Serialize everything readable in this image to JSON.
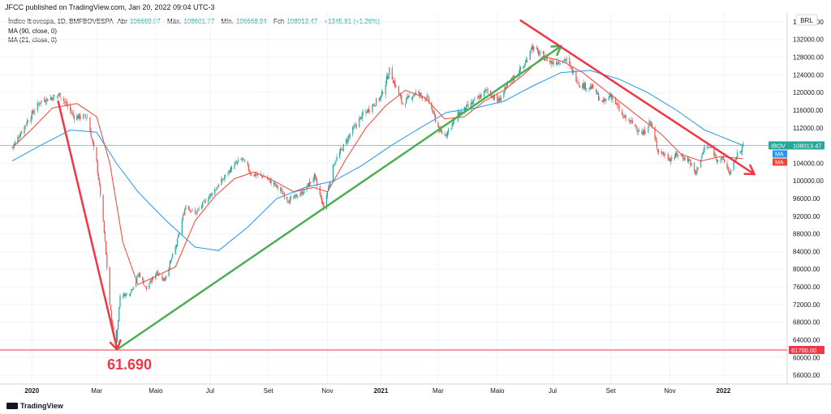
{
  "header": {
    "published": "JFCC published on TradingView.com, Jan 20, 2022 09:04 UTC-3"
  },
  "legend": {
    "symbol": "Índice Ibovespa, 1D, BMFBOVESPA",
    "open_label": "Abr",
    "open": "106669.97",
    "high_label": "Máx.",
    "high": "108601.77",
    "low_label": "Mín.",
    "low": "106668.94",
    "close_label": "Fch",
    "close": "108013.47",
    "change": "+1345.81 (+1.26%)",
    "ma1": "MA (90, close, 0)",
    "ma2": "MA (21, close, 0)"
  },
  "axis": {
    "currency": "BRL"
  },
  "badges": {
    "ibov_label": "IBOV",
    "ibov_value": "108013.47",
    "ma_label_1": "MA",
    "ma_label_2": "MA",
    "line_value": "61700.00"
  },
  "annotation": {
    "low_text": "61.690"
  },
  "footer": {
    "brand": "TradingView"
  },
  "colors": {
    "up": "#26a69a",
    "down": "#ef5350",
    "ma90": "#2196f3",
    "ma21": "#f44336",
    "trend_green": "#4caf50",
    "trend_red": "#f23645",
    "badge_ibov": "#26a69a"
  },
  "chart_data": {
    "type": "line",
    "ylim": [
      54000,
      138000
    ],
    "yticks": [
      56000,
      60000,
      64000,
      68000,
      72000,
      76000,
      80000,
      84000,
      88000,
      92000,
      96000,
      100000,
      104000,
      108000,
      112000,
      116000,
      120000,
      124000,
      128000,
      132000,
      136000
    ],
    "ytick_labels": [
      "56000.00",
      "60000.00",
      "64000.00",
      "68000.00",
      "72000.00",
      "76000.00",
      "80000.00",
      "84000.00",
      "88000.00",
      "92000.00",
      "96000.00",
      "100000.00",
      "104000.00",
      "108000.00",
      "112000.00",
      "116000.00",
      "120000.00",
      "124000.00",
      "128000.00",
      "132000.00",
      "136000.00"
    ],
    "xticks": [
      {
        "t": "2019-12-24",
        "label": "2020",
        "bold": true
      },
      {
        "t": "2020-03-02",
        "label": "Mar",
        "bold": false
      },
      {
        "t": "2020-05-04",
        "label": "Maio",
        "bold": false
      },
      {
        "t": "2020-07-01",
        "label": "Jul",
        "bold": false
      },
      {
        "t": "2020-09-01",
        "label": "Set",
        "bold": false
      },
      {
        "t": "2020-11-03",
        "label": "Nov",
        "bold": false
      },
      {
        "t": "2020-12-30",
        "label": "2021",
        "bold": true
      },
      {
        "t": "2021-03-01",
        "label": "Mar",
        "bold": false
      },
      {
        "t": "2021-05-03",
        "label": "Maio",
        "bold": false
      },
      {
        "t": "2021-07-01",
        "label": "Jul",
        "bold": false
      },
      {
        "t": "2021-09-01",
        "label": "Set",
        "bold": false
      },
      {
        "t": "2021-11-03",
        "label": "Nov",
        "bold": false
      },
      {
        "t": "2021-12-30",
        "label": "2022",
        "bold": true
      }
    ],
    "series": [
      {
        "name": "Índice Ibovespa",
        "points": [
          [
            "2019-12-03",
            107500
          ],
          [
            "2019-12-19",
            113500
          ],
          [
            "2020-01-02",
            118000
          ],
          [
            "2020-01-23",
            119500
          ],
          [
            "2020-02-07",
            114500
          ],
          [
            "2020-02-21",
            114500
          ],
          [
            "2020-03-02",
            104000
          ],
          [
            "2020-03-06",
            97000
          ],
          [
            "2020-03-11",
            86000
          ],
          [
            "2020-03-16",
            72000
          ],
          [
            "2020-03-19",
            67000
          ],
          [
            "2020-03-23",
            63600
          ],
          [
            "2020-03-27",
            74000
          ],
          [
            "2020-04-06",
            74500
          ],
          [
            "2020-04-16",
            79000
          ],
          [
            "2020-04-24",
            75500
          ],
          [
            "2020-05-05",
            79500
          ],
          [
            "2020-05-13",
            77500
          ],
          [
            "2020-05-26",
            85500
          ],
          [
            "2020-06-05",
            94600
          ],
          [
            "2020-06-15",
            92500
          ],
          [
            "2020-06-26",
            95500
          ],
          [
            "2020-07-08",
            98500
          ],
          [
            "2020-07-24",
            103000
          ],
          [
            "2020-08-04",
            105000
          ],
          [
            "2020-08-14",
            101500
          ],
          [
            "2020-08-28",
            101000
          ],
          [
            "2020-09-11",
            98500
          ],
          [
            "2020-09-23",
            95500
          ],
          [
            "2020-10-08",
            97500
          ],
          [
            "2020-10-20",
            101000
          ],
          [
            "2020-10-30",
            93900
          ],
          [
            "2020-11-10",
            104000
          ],
          [
            "2020-11-27",
            110500
          ],
          [
            "2020-12-09",
            114500
          ],
          [
            "2020-12-30",
            119000
          ],
          [
            "2021-01-08",
            125000
          ],
          [
            "2021-01-22",
            117500
          ],
          [
            "2021-02-05",
            120000
          ],
          [
            "2021-02-18",
            118500
          ],
          [
            "2021-03-03",
            111000
          ],
          [
            "2021-03-09",
            110500
          ],
          [
            "2021-03-22",
            115000
          ],
          [
            "2021-04-06",
            117500
          ],
          [
            "2021-04-22",
            120500
          ],
          [
            "2021-05-04",
            118000
          ],
          [
            "2021-05-17",
            122500
          ],
          [
            "2021-06-02",
            126500
          ],
          [
            "2021-06-08",
            130500
          ],
          [
            "2021-06-18",
            128500
          ],
          [
            "2021-06-30",
            126800
          ],
          [
            "2021-07-15",
            127500
          ],
          [
            "2021-07-30",
            121800
          ],
          [
            "2021-08-13",
            121000
          ],
          [
            "2021-08-23",
            117500
          ],
          [
            "2021-09-01",
            119500
          ],
          [
            "2021-09-14",
            114500
          ],
          [
            "2021-09-24",
            113000
          ],
          [
            "2021-10-05",
            110500
          ],
          [
            "2021-10-13",
            113500
          ],
          [
            "2021-10-21",
            107000
          ],
          [
            "2021-11-03",
            105000
          ],
          [
            "2021-11-12",
            106000
          ],
          [
            "2021-11-24",
            104500
          ],
          [
            "2021-11-30",
            101500
          ],
          [
            "2021-12-10",
            107500
          ],
          [
            "2021-12-17",
            107500
          ],
          [
            "2021-12-23",
            105000
          ],
          [
            "2021-12-30",
            104800
          ],
          [
            "2022-01-06",
            101600
          ],
          [
            "2022-01-13",
            105500
          ],
          [
            "2022-01-20",
            108013
          ]
        ]
      },
      {
        "name": "MA (90, close, 0)",
        "points": [
          [
            "2019-12-03",
            104500
          ],
          [
            "2020-01-02",
            108000
          ],
          [
            "2020-02-03",
            111500
          ],
          [
            "2020-03-02",
            111000
          ],
          [
            "2020-03-23",
            104000
          ],
          [
            "2020-04-15",
            97500
          ],
          [
            "2020-05-15",
            91000
          ],
          [
            "2020-06-15",
            85000
          ],
          [
            "2020-07-10",
            84200
          ],
          [
            "2020-08-10",
            89500
          ],
          [
            "2020-09-10",
            96000
          ],
          [
            "2020-10-10",
            98500
          ],
          [
            "2020-11-10",
            100000
          ],
          [
            "2020-12-10",
            103500
          ],
          [
            "2021-01-10",
            108000
          ],
          [
            "2021-02-10",
            112000
          ],
          [
            "2021-03-10",
            115500
          ],
          [
            "2021-04-10",
            116500
          ],
          [
            "2021-05-10",
            118000
          ],
          [
            "2021-06-10",
            121500
          ],
          [
            "2021-07-10",
            124500
          ],
          [
            "2021-08-10",
            125000
          ],
          [
            "2021-09-10",
            123000
          ],
          [
            "2021-10-10",
            120000
          ],
          [
            "2021-11-10",
            116000
          ],
          [
            "2021-12-10",
            111500
          ],
          [
            "2022-01-20",
            108000
          ]
        ]
      },
      {
        "name": "MA (21, close, 0)",
        "points": [
          [
            "2019-12-03",
            107500
          ],
          [
            "2019-12-23",
            111500
          ],
          [
            "2020-01-15",
            116500
          ],
          [
            "2020-02-10",
            117500
          ],
          [
            "2020-03-02",
            114500
          ],
          [
            "2020-03-16",
            104000
          ],
          [
            "2020-03-30",
            86000
          ],
          [
            "2020-04-15",
            76500
          ],
          [
            "2020-05-05",
            78500
          ],
          [
            "2020-05-25",
            80500
          ],
          [
            "2020-06-15",
            91000
          ],
          [
            "2020-07-06",
            96500
          ],
          [
            "2020-07-27",
            100500
          ],
          [
            "2020-08-17",
            102000
          ],
          [
            "2020-09-07",
            100000
          ],
          [
            "2020-09-28",
            97500
          ],
          [
            "2020-10-19",
            98500
          ],
          [
            "2020-11-03",
            97500
          ],
          [
            "2020-11-23",
            105000
          ],
          [
            "2020-12-14",
            112000
          ],
          [
            "2021-01-04",
            117000
          ],
          [
            "2021-01-25",
            120500
          ],
          [
            "2021-02-15",
            118800
          ],
          [
            "2021-03-08",
            114000
          ],
          [
            "2021-03-29",
            114500
          ],
          [
            "2021-04-19",
            118000
          ],
          [
            "2021-05-10",
            120500
          ],
          [
            "2021-05-31",
            124000
          ],
          [
            "2021-06-21",
            128200
          ],
          [
            "2021-07-12",
            127000
          ],
          [
            "2021-08-02",
            124500
          ],
          [
            "2021-08-23",
            121000
          ],
          [
            "2021-09-13",
            117500
          ],
          [
            "2021-10-04",
            114000
          ],
          [
            "2021-10-25",
            110500
          ],
          [
            "2021-11-15",
            106000
          ],
          [
            "2021-12-06",
            104500
          ],
          [
            "2021-12-27",
            105500
          ],
          [
            "2022-01-20",
            105000
          ]
        ]
      }
    ],
    "annotations": [
      {
        "type": "trendline",
        "color": "red",
        "from": [
          "2020-01-21",
          118000
        ],
        "to": [
          "2020-03-24",
          61800
        ]
      },
      {
        "type": "trendline",
        "color": "green",
        "from": [
          "2020-03-25",
          62000
        ],
        "to": [
          "2021-07-10",
          130500
        ]
      },
      {
        "type": "trendline",
        "color": "red",
        "from": [
          "2021-05-28",
          136300
        ],
        "to": [
          "2022-02-01",
          101500
        ]
      },
      {
        "type": "hline",
        "color": "red",
        "value": 61700
      },
      {
        "type": "hline",
        "color": "#26a69a",
        "value": 108013
      }
    ]
  }
}
